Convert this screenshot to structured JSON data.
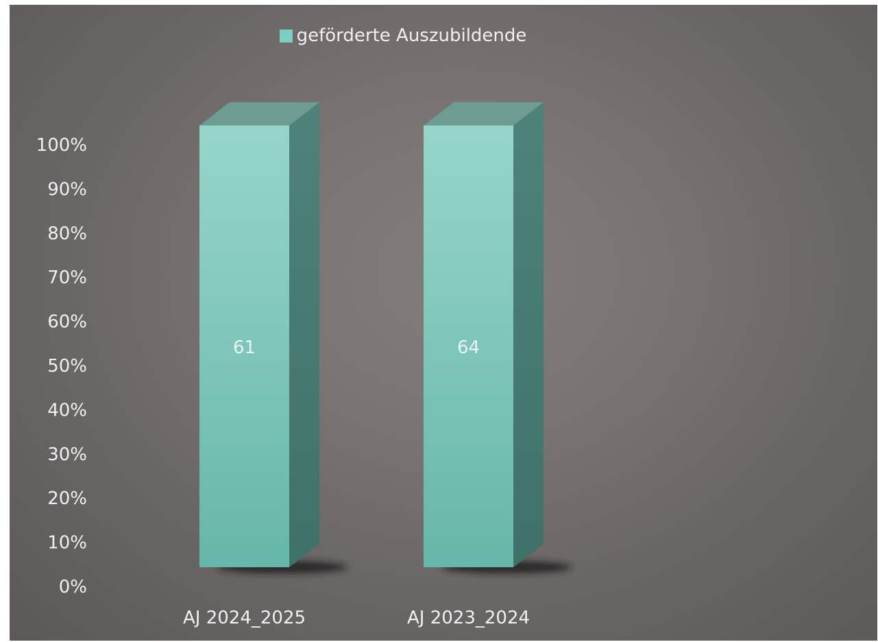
{
  "chart_data": {
    "type": "bar",
    "style": "3d-column-percent-stacked",
    "categories": [
      "AJ 2024_2025",
      "AJ 2023_2024"
    ],
    "series": [
      {
        "name": "geförderte Auszubildende",
        "values": [
          61,
          64
        ],
        "color": "#7ccfc0"
      }
    ],
    "data_labels": [
      "61",
      "64"
    ],
    "y_tick_labels": [
      "0%",
      "10%",
      "20%",
      "30%",
      "40%",
      "50%",
      "60%",
      "70%",
      "80%",
      "90%",
      "100%"
    ],
    "ylim": [
      0,
      100
    ],
    "grid": false,
    "legend_position": "top-center"
  },
  "colors": {
    "background": "#767170",
    "bar_front_top": "#97d5c9",
    "bar_front_bottom": "#66b7a9",
    "bar_side": "#4e8379",
    "bar_top": "#6d9c92",
    "text": "#f0f0f0"
  }
}
